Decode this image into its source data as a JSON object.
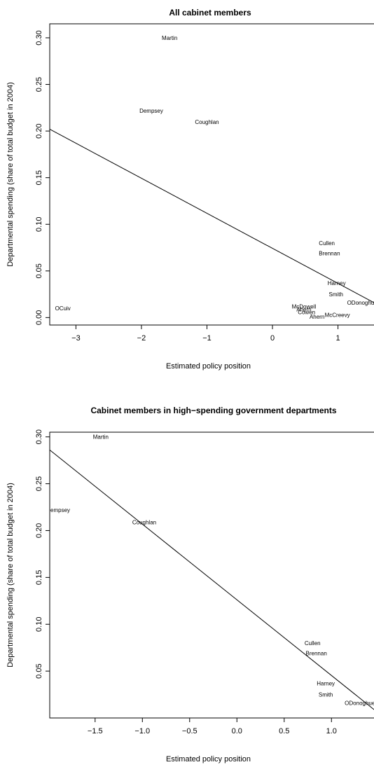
{
  "chart_data": [
    {
      "type": "scatter",
      "title": "All cabinet members",
      "xlabel": "Estimated policy position",
      "ylabel": "Departmental spending (share of total budget in 2004)",
      "xlim": [
        -3.4,
        1.55
      ],
      "ylim": [
        -0.008,
        0.315
      ],
      "xticks": [
        -3,
        -2,
        -1,
        0,
        1
      ],
      "xtick_labels": [
        "−3",
        "−2",
        "−1",
        "0",
        "1"
      ],
      "yticks": [
        0.0,
        0.05,
        0.1,
        0.15,
        0.2,
        0.25,
        0.3
      ],
      "ytick_labels": [
        "0.00",
        "0.05",
        "0.10",
        "0.15",
        "0.20",
        "0.25",
        "0.30"
      ],
      "grid": false,
      "points": [
        {
          "label": "Martin",
          "x": -1.57,
          "y": 0.3
        },
        {
          "label": "Dempsey",
          "x": -1.85,
          "y": 0.222
        },
        {
          "label": "Coughlan",
          "x": -1.0,
          "y": 0.21
        },
        {
          "label": "Cullen",
          "x": 0.83,
          "y": 0.08
        },
        {
          "label": "Brennan",
          "x": 0.87,
          "y": 0.069
        },
        {
          "label": "Harney",
          "x": 0.98,
          "y": 0.037
        },
        {
          "label": "Smith",
          "x": 0.97,
          "y": 0.025
        },
        {
          "label": "ODonoghue",
          "x": 1.37,
          "y": 0.016
        },
        {
          "label": "McDowell",
          "x": 0.48,
          "y": 0.012
        },
        {
          "label": "Ahern",
          "x": 0.48,
          "y": 0.009
        },
        {
          "label": "Cowen",
          "x": 0.52,
          "y": 0.006
        },
        {
          "label": "McCreevy",
          "x": 0.99,
          "y": 0.003
        },
        {
          "label": "Ahern",
          "x": 0.68,
          "y": 0.001
        },
        {
          "label": "OCuiv",
          "x": -3.2,
          "y": 0.01
        }
      ],
      "fit_line": {
        "x": [
          -3.4,
          1.55
        ],
        "y": [
          0.202,
          0.016
        ]
      }
    },
    {
      "type": "scatter",
      "title": "Cabinet members in high−spending government departments",
      "xlabel": "Estimated policy position",
      "ylabel": "Departmental spending (share of total budget in 2004)",
      "xlim": [
        -1.98,
        1.45
      ],
      "ylim": [
        0.0,
        0.305
      ],
      "xticks": [
        -1.5,
        -1.0,
        -0.5,
        0.0,
        0.5,
        1.0
      ],
      "xtick_labels": [
        "−1.5",
        "−1.0",
        "−0.5",
        "0.0",
        "0.5",
        "1.0"
      ],
      "yticks": [
        0.05,
        0.1,
        0.15,
        0.2,
        0.25,
        0.3
      ],
      "ytick_labels": [
        "0.05",
        "0.10",
        "0.15",
        "0.20",
        "0.25",
        "0.30"
      ],
      "grid": false,
      "points": [
        {
          "label": "Martin",
          "x": -1.44,
          "y": 0.3
        },
        {
          "label": "Dempsey",
          "x": -1.89,
          "y": 0.222
        },
        {
          "label": "Coughlan",
          "x": -0.98,
          "y": 0.209
        },
        {
          "label": "Cullen",
          "x": 0.8,
          "y": 0.08
        },
        {
          "label": "Brennan",
          "x": 0.84,
          "y": 0.069
        },
        {
          "label": "Harney",
          "x": 0.94,
          "y": 0.037
        },
        {
          "label": "Smith",
          "x": 0.94,
          "y": 0.025
        },
        {
          "label": "ODonoghue",
          "x": 1.3,
          "y": 0.016
        }
      ],
      "fit_line": {
        "x": [
          -1.98,
          1.45
        ],
        "y": [
          0.286,
          0.009
        ]
      }
    }
  ]
}
